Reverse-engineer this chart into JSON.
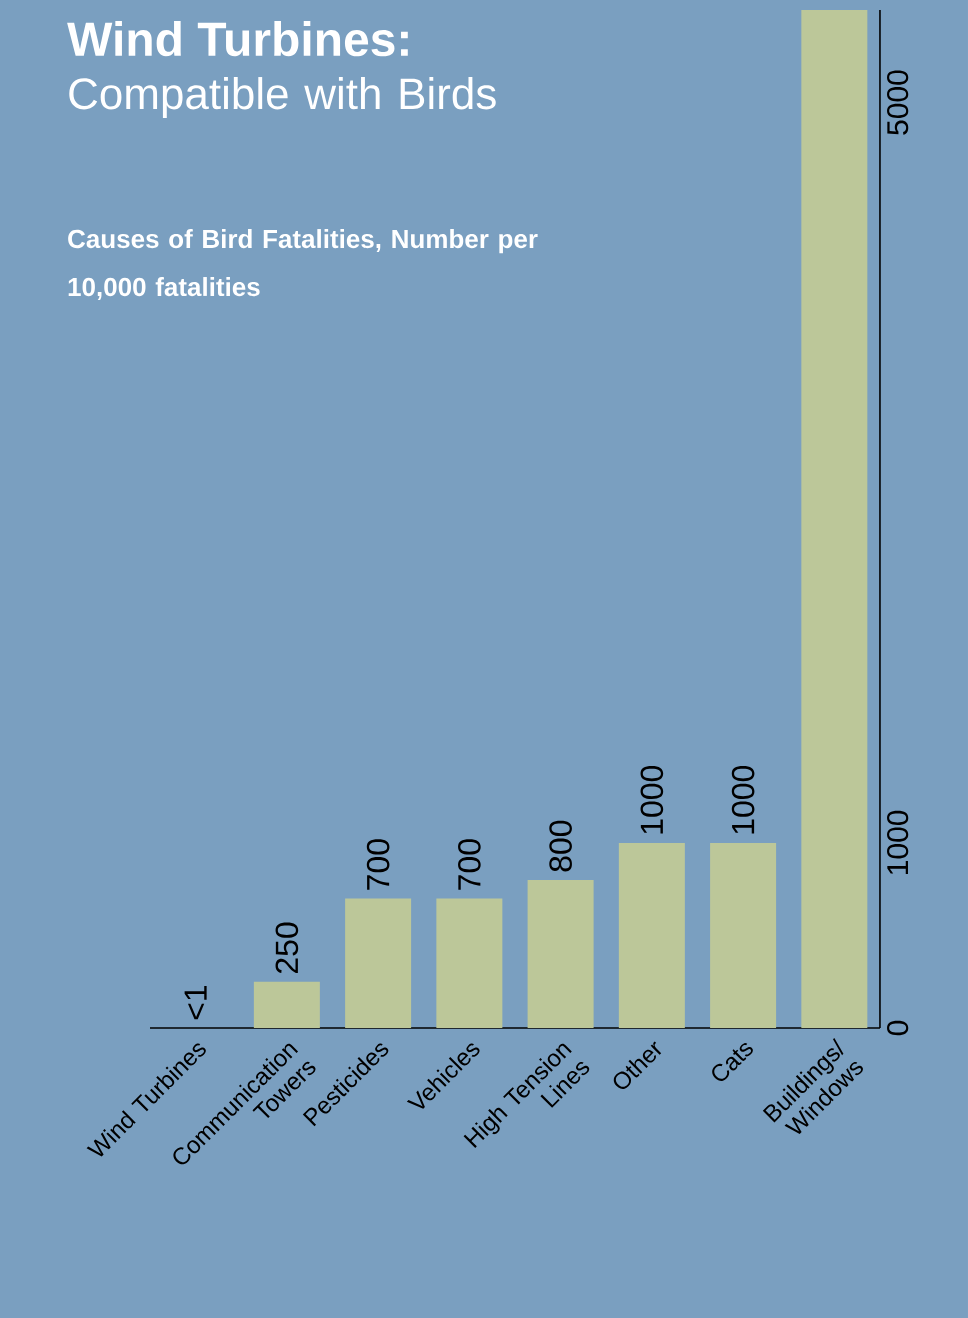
{
  "chart_data": {
    "type": "bar",
    "title": "Wind Turbines:",
    "subtitle": "Compatible with Birds",
    "annotations": [
      "Causes of Bird Fatalities, Number per 10,000 fatalities"
    ],
    "categories": [
      "Wind Turbines",
      "Communication Towers",
      "Pesticides",
      "Vehicles",
      "High Tension Lines",
      "Other",
      "Cats",
      "Buildings/ Windows"
    ],
    "values": [
      0.5,
      250,
      700,
      700,
      800,
      1000,
      1000,
      5500
    ],
    "value_labels": [
      "<1",
      "250",
      "700",
      "700",
      "800",
      "1000",
      "1000",
      null
    ],
    "color": "#bcc799",
    "ylim": [
      0,
      5500
    ],
    "yticks": [
      0,
      1000,
      5000
    ]
  }
}
